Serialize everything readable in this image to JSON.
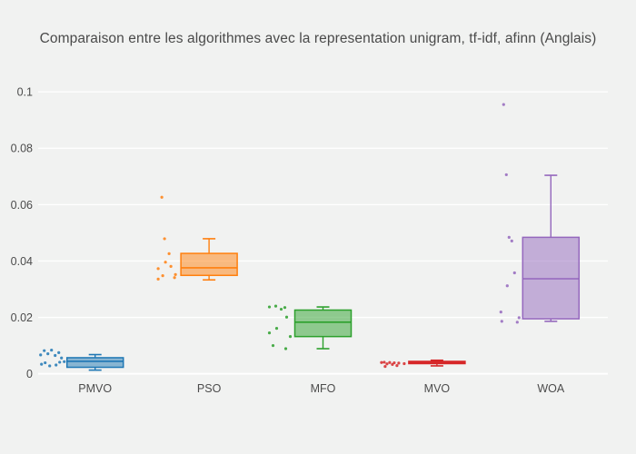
{
  "chart_data": {
    "type": "box",
    "title": "Comparaison entre les algorithmes avec la representation unigram, tf-idf, afinn (Anglais)",
    "xlabel": "",
    "ylabel": "",
    "categories": [
      "PMVO",
      "PSO",
      "MFO",
      "MVO",
      "WOA"
    ],
    "yticks": [
      0,
      0.02,
      0.04,
      0.06,
      0.08,
      0.1
    ],
    "ytick_labels": [
      "0",
      "0.02",
      "0.04",
      "0.06",
      "0.08",
      "0.1"
    ],
    "ylim": [
      -0.0043,
      0.1052
    ],
    "grid": true,
    "legend": false,
    "background_color": "#f1f2f1",
    "gridline_color": "#ffffff",
    "text_color": "#4c4c4c",
    "points_position": "left",
    "series": [
      {
        "name": "PMVO",
        "color": "#1f77b4",
        "fill": "rgba(31,119,180,0.5)",
        "box": {
          "lower_whisker": 0.0013,
          "q1": 0.0023,
          "median": 0.0044,
          "q3": 0.0057,
          "upper_whisker": 0.0068
        },
        "points": [
          [
            0.0084,
            -48
          ],
          [
            0.0082,
            -56
          ],
          [
            0.0075,
            -40
          ],
          [
            0.0071,
            -52
          ],
          [
            0.0067,
            -60
          ],
          [
            0.0065,
            -44
          ],
          [
            0.0056,
            -37
          ],
          [
            0.0043,
            -34
          ],
          [
            0.0041,
            -39
          ],
          [
            0.0039,
            -55
          ],
          [
            0.0034,
            -59
          ],
          [
            0.0031,
            -43
          ],
          [
            0.0028,
            -50
          ]
        ]
      },
      {
        "name": "PSO",
        "color": "#ff7f0e",
        "fill": "rgba(255,127,14,0.5)",
        "box": {
          "lower_whisker": 0.0333,
          "q1": 0.0349,
          "median": 0.0376,
          "q3": 0.0427,
          "upper_whisker": 0.0479
        },
        "points": [
          [
            0.0626,
            -52
          ],
          [
            0.0479,
            -49
          ],
          [
            0.0426,
            -44
          ],
          [
            0.0396,
            -48
          ],
          [
            0.0381,
            -42
          ],
          [
            0.0373,
            -56
          ],
          [
            0.0352,
            -37
          ],
          [
            0.0348,
            -51
          ],
          [
            0.0341,
            -38
          ],
          [
            0.0336,
            -56
          ]
        ]
      },
      {
        "name": "MFO",
        "color": "#2ca02c",
        "fill": "rgba(44,160,44,0.5)",
        "box": {
          "lower_whisker": 0.0089,
          "q1": 0.0132,
          "median": 0.0183,
          "q3": 0.0226,
          "upper_whisker": 0.0237
        },
        "points": [
          [
            0.0237,
            -59
          ],
          [
            0.024,
            -52
          ],
          [
            0.0229,
            -46
          ],
          [
            0.0235,
            -42
          ],
          [
            0.0201,
            -40
          ],
          [
            0.0161,
            -51
          ],
          [
            0.0145,
            -59
          ],
          [
            0.0132,
            -36
          ],
          [
            0.01,
            -55
          ],
          [
            0.0089,
            -41
          ]
        ]
      },
      {
        "name": "MVO",
        "color": "#d62728",
        "fill": "rgba(214,39,40,0.5)",
        "box": {
          "lower_whisker": 0.0028,
          "q1": 0.0036,
          "median": 0.004,
          "q3": 0.0044,
          "upper_whisker": 0.0048
        },
        "points": [
          [
            0.0041,
            -58
          ],
          [
            0.004,
            -52
          ],
          [
            0.0039,
            -47
          ],
          [
            0.0038,
            -42
          ],
          [
            0.0036,
            -36
          ],
          [
            0.0035,
            -55
          ],
          [
            0.0033,
            -49
          ],
          [
            0.0029,
            -44
          ],
          [
            0.0026,
            -57
          ],
          [
            0.004,
            -61
          ]
        ]
      },
      {
        "name": "WOA",
        "color": "#9467bd",
        "fill": "rgba(148,103,189,0.5)",
        "box": {
          "lower_whisker": 0.0186,
          "q1": 0.0195,
          "median": 0.0337,
          "q3": 0.0484,
          "upper_whisker": 0.0704
        },
        "points": [
          [
            0.0955,
            -52
          ],
          [
            0.0706,
            -49
          ],
          [
            0.0484,
            -46
          ],
          [
            0.0471,
            -43
          ],
          [
            0.0358,
            -40
          ],
          [
            0.0312,
            -48
          ],
          [
            0.0219,
            -55
          ],
          [
            0.0186,
            -54
          ],
          [
            0.0183,
            -37
          ],
          [
            0.0199,
            -35
          ]
        ]
      }
    ]
  }
}
